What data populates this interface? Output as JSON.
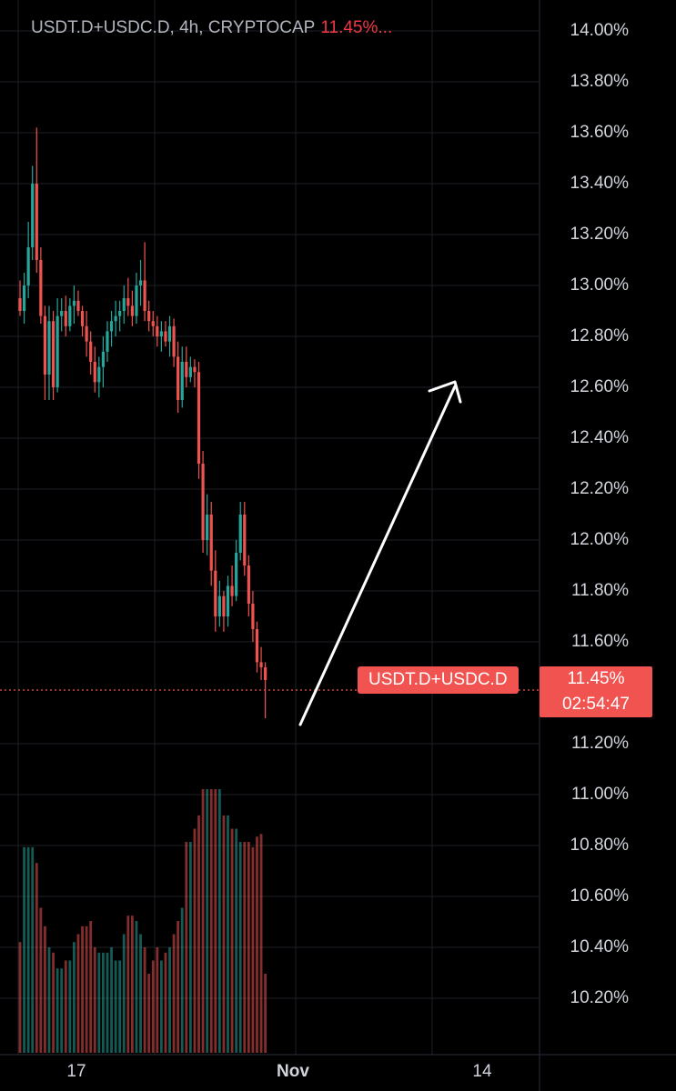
{
  "header": {
    "symbol_text": "USDT.D+USDC.D, 4h, CRYPTOCAP",
    "last_value": "11.45%..."
  },
  "price_line": {
    "tag_label": "USDT.D+USDC.D",
    "price": "11.45%",
    "countdown": "02:54:47",
    "color": "#f05350"
  },
  "chart_data": {
    "type": "candlestick",
    "y_axis": {
      "ticks": [
        "14.00%",
        "13.80%",
        "13.60%",
        "13.40%",
        "13.20%",
        "13.00%",
        "12.80%",
        "12.60%",
        "12.40%",
        "12.20%",
        "12.00%",
        "11.80%",
        "11.60%",
        "11.20%",
        "11.00%",
        "10.80%",
        "10.60%",
        "10.40%",
        "10.20%"
      ],
      "ylim": [
        10.0,
        14.1
      ]
    },
    "x_axis": {
      "ticks": [
        {
          "label": "17",
          "bold": false
        },
        {
          "label": "Nov",
          "bold": true
        },
        {
          "label": "14",
          "bold": false
        }
      ]
    },
    "last_price": 11.45,
    "colors": {
      "up": "#26a69a",
      "down": "#ef5350",
      "arrow": "#ffffff"
    },
    "candles": [
      [
        12.95,
        13.02,
        12.88,
        12.9
      ],
      [
        12.9,
        13.05,
        12.85,
        13.0
      ],
      [
        13.0,
        13.25,
        12.95,
        13.15
      ],
      [
        13.15,
        13.47,
        13.1,
        13.4
      ],
      [
        13.4,
        13.62,
        13.05,
        13.1
      ],
      [
        13.1,
        13.15,
        12.85,
        12.88
      ],
      [
        12.88,
        12.92,
        12.55,
        12.65
      ],
      [
        12.65,
        12.92,
        12.55,
        12.86
      ],
      [
        12.86,
        12.9,
        12.55,
        12.6
      ],
      [
        12.6,
        12.95,
        12.58,
        12.88
      ],
      [
        12.88,
        12.95,
        12.82,
        12.9
      ],
      [
        12.9,
        12.96,
        12.8,
        12.84
      ],
      [
        12.84,
        12.95,
        12.82,
        12.92
      ],
      [
        12.92,
        13.0,
        12.85,
        12.94
      ],
      [
        12.94,
        12.98,
        12.88,
        12.9
      ],
      [
        12.9,
        12.92,
        12.8,
        12.84
      ],
      [
        12.84,
        12.9,
        12.72,
        12.78
      ],
      [
        12.78,
        12.82,
        12.65,
        12.7
      ],
      [
        12.7,
        12.76,
        12.58,
        12.62
      ],
      [
        12.62,
        12.72,
        12.56,
        12.68
      ],
      [
        12.68,
        12.8,
        12.6,
        12.74
      ],
      [
        12.74,
        12.86,
        12.7,
        12.82
      ],
      [
        12.82,
        12.9,
        12.76,
        12.86
      ],
      [
        12.86,
        12.94,
        12.8,
        12.88
      ],
      [
        12.88,
        12.94,
        12.82,
        12.9
      ],
      [
        12.9,
        13.0,
        12.85,
        12.95
      ],
      [
        12.95,
        13.03,
        12.88,
        12.92
      ],
      [
        12.92,
        12.98,
        12.84,
        12.88
      ],
      [
        12.88,
        13.05,
        12.85,
        13.0
      ],
      [
        13.0,
        13.1,
        12.92,
        13.02
      ],
      [
        13.02,
        13.17,
        12.86,
        12.9
      ],
      [
        12.9,
        12.94,
        12.82,
        12.86
      ],
      [
        12.86,
        12.9,
        12.8,
        12.84
      ],
      [
        12.84,
        12.88,
        12.76,
        12.8
      ],
      [
        12.8,
        12.86,
        12.74,
        12.82
      ],
      [
        12.82,
        12.86,
        12.76,
        12.78
      ],
      [
        12.78,
        12.88,
        12.72,
        12.84
      ],
      [
        12.84,
        12.87,
        12.68,
        12.72
      ],
      [
        12.72,
        12.78,
        12.5,
        12.55
      ],
      [
        12.55,
        12.76,
        12.52,
        12.7
      ],
      [
        12.7,
        12.76,
        12.6,
        12.64
      ],
      [
        12.64,
        12.72,
        12.62,
        12.68
      ],
      [
        12.68,
        12.71,
        12.6,
        12.66
      ],
      [
        12.66,
        12.7,
        12.24,
        12.3
      ],
      [
        12.3,
        12.35,
        11.95,
        12.0
      ],
      [
        12.0,
        12.18,
        11.94,
        12.1
      ],
      [
        12.1,
        12.15,
        11.82,
        11.88
      ],
      [
        11.88,
        11.96,
        11.64,
        11.7
      ],
      [
        11.7,
        11.84,
        11.66,
        11.78
      ],
      [
        11.78,
        11.8,
        11.64,
        11.7
      ],
      [
        11.7,
        11.86,
        11.66,
        11.82
      ],
      [
        11.82,
        11.9,
        11.74,
        11.78
      ],
      [
        11.78,
        12.0,
        11.76,
        11.95
      ],
      [
        11.95,
        12.15,
        11.92,
        12.1
      ],
      [
        12.1,
        12.15,
        11.86,
        11.9
      ],
      [
        11.9,
        11.94,
        11.7,
        11.75
      ],
      [
        11.75,
        11.8,
        11.6,
        11.65
      ],
      [
        11.65,
        11.68,
        11.48,
        11.52
      ],
      [
        11.52,
        11.58,
        11.45,
        11.5
      ],
      [
        11.5,
        11.52,
        11.3,
        11.45
      ]
    ],
    "volume": [
      0.42,
      0.78,
      0.78,
      0.78,
      0.72,
      0.55,
      0.48,
      0.4,
      0.38,
      0.32,
      0.32,
      0.35,
      0.35,
      0.42,
      0.45,
      0.48,
      0.48,
      0.5,
      0.4,
      0.38,
      0.38,
      0.38,
      0.4,
      0.35,
      0.35,
      0.45,
      0.52,
      0.52,
      0.5,
      0.45,
      0.4,
      0.3,
      0.35,
      0.4,
      0.35,
      0.38,
      0.4,
      0.45,
      0.5,
      0.55,
      0.8,
      0.8,
      0.85,
      0.9,
      1.0,
      1.0,
      1.0,
      1.0,
      1.0,
      0.9,
      0.9,
      0.85,
      0.85,
      0.8,
      0.8,
      0.8,
      0.78,
      0.82,
      0.83,
      0.3
    ]
  }
}
